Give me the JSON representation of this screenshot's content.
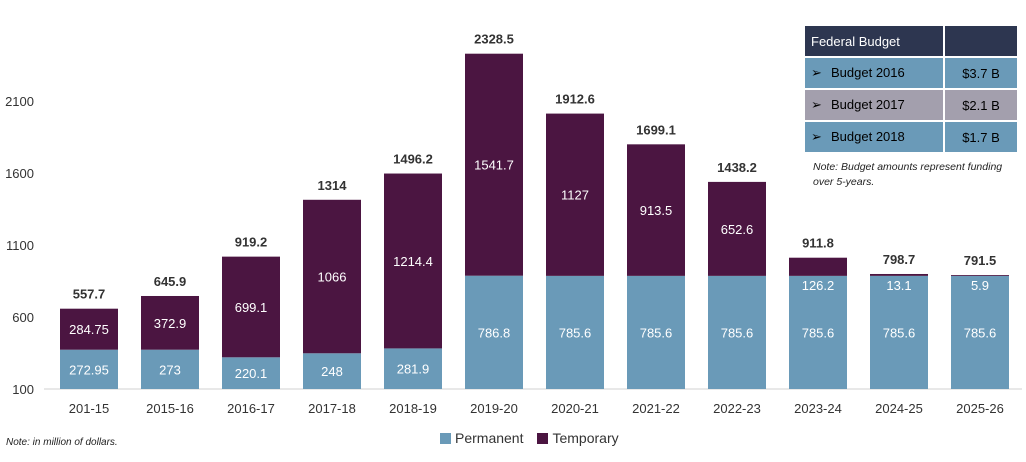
{
  "chart_data": {
    "type": "bar",
    "stacked": true,
    "categories": [
      "201-15",
      "2015-16",
      "2016-17",
      "2017-18",
      "2018-19",
      "2019-20",
      "2020-21",
      "2021-22",
      "2022-23",
      "2023-24",
      "2024-25",
      "2025-26"
    ],
    "series": [
      {
        "name": "Permanent",
        "color": "#6a9ab8",
        "values": [
          272.95,
          273,
          220.1,
          248,
          281.9,
          786.8,
          785.6,
          785.6,
          785.6,
          785.6,
          785.6,
          785.6
        ],
        "labels": [
          "272.95",
          "273",
          "220.1",
          "248",
          "281.9",
          "786.8",
          "785.6",
          "785.6",
          "785.6",
          "785.6",
          "785.6",
          "785.6"
        ]
      },
      {
        "name": "Temporary",
        "color": "#4b1541",
        "values": [
          284.75,
          372.9,
          699.1,
          1066,
          1214.4,
          1541.7,
          1127,
          913.5,
          652.6,
          126.2,
          13.1,
          5.9
        ],
        "labels": [
          "284.75",
          "372.9",
          "699.1",
          "1066",
          "1214.4",
          "1541.7",
          "1127",
          "913.5",
          "652.6",
          "126.2",
          "13.1",
          "5.9"
        ]
      }
    ],
    "totals": [
      "557.7",
      "645.9",
      "919.2",
      "1314",
      "1496.2",
      "2328.5",
      "1912.6",
      "1699.1",
      "1438.2",
      "911.8",
      "798.7",
      "791.5"
    ],
    "yticks": [
      "100",
      "600",
      "1100",
      "1600",
      "2100"
    ],
    "ylim": [
      100,
      2400
    ],
    "legend": "bottom-center"
  },
  "budget_table": {
    "header": "Federal Budget",
    "rows": [
      {
        "label": "Budget 2016",
        "value": "$3.7 B",
        "color": "#6a9ab8"
      },
      {
        "label": "Budget 2017",
        "value": "$2.1 B",
        "color": "#a39fad"
      },
      {
        "label": "Budget 2018",
        "value": "$1.7 B",
        "color": "#6a9ab8"
      }
    ],
    "note": "Note: Budget amounts represent funding over 5-years."
  },
  "note": "Note: in million of dollars.",
  "legend": {
    "permanent": "Permanent",
    "temporary": "Temporary"
  }
}
